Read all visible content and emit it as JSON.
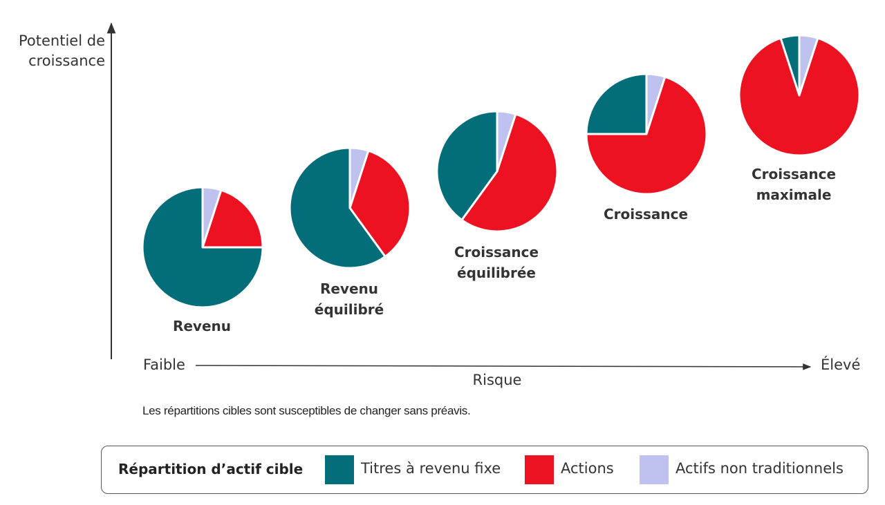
{
  "chart_data": {
    "type": "pie",
    "ylabel_lines": [
      "Potentiel de",
      "croissance"
    ],
    "xlabel": "Risque",
    "x_low_label": "Faible",
    "x_high_label": "Élevé",
    "note": "Les répartitions cibles sont susceptibles de changer sans préavis.",
    "legend_title": "Répartition d’actif cible",
    "series_colors": {
      "fixed_income": "#036e7a",
      "equities": "#ed1222",
      "alternatives": "#bfc2ee"
    },
    "legend": [
      {
        "key": "fixed_income",
        "label": "Titres à revenu fixe"
      },
      {
        "key": "equities",
        "label": "Actions"
      },
      {
        "key": "alternatives",
        "label": "Actifs non traditionnels"
      }
    ],
    "pies": [
      {
        "name_lines": [
          "Revenu"
        ],
        "alternatives": 5,
        "equities": 20,
        "fixed_income": 75
      },
      {
        "name_lines": [
          "Revenu",
          "équilibré"
        ],
        "alternatives": 5,
        "equities": 35,
        "fixed_income": 60
      },
      {
        "name_lines": [
          "Croissance",
          "équilibrée"
        ],
        "alternatives": 5,
        "equities": 55,
        "fixed_income": 40
      },
      {
        "name_lines": [
          "Croissance"
        ],
        "alternatives": 5,
        "equities": 70,
        "fixed_income": 25
      },
      {
        "name_lines": [
          "Croissance",
          "maximale"
        ],
        "alternatives": 5,
        "equities": 90,
        "fixed_income": 5
      }
    ]
  }
}
